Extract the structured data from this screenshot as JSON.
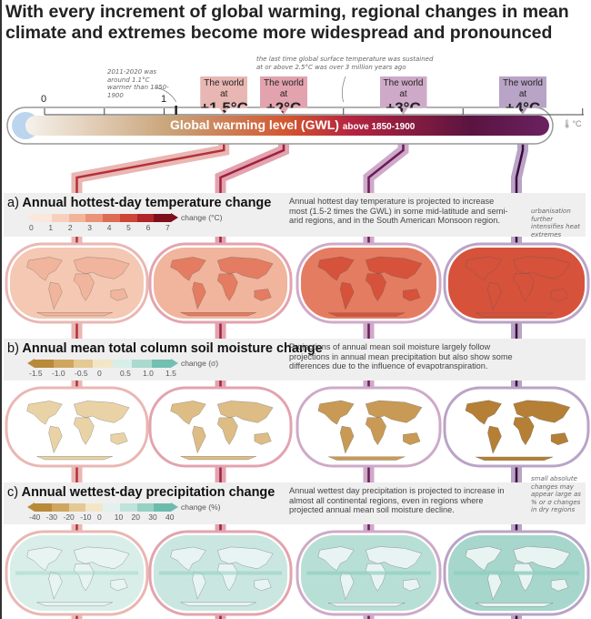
{
  "title": "With every increment of global warming, regional changes in mean climate and extremes become more widespread and pronounced",
  "gwl_bar": {
    "label": "Global warming level (GWL)",
    "label_suffix": "above 1850-1900",
    "unit_icon": "thermometer-icon",
    "unit": "°C",
    "tick_0": "0",
    "tick_1": "1",
    "note_current": "2011-2020 was around 1.1°C warmer than 1850-1900",
    "note_current_value": 1.1,
    "note_past": "the last time global surface temperature was sustained at or above 2.5°C was over 3 million years ago",
    "note_past_value": 2.5
  },
  "levels": [
    {
      "prefix": "The world at",
      "value": "+1.5°C",
      "gwl": 1.5,
      "color": "#e9b7b3",
      "line": "#b5303a"
    },
    {
      "prefix": "The world at",
      "value": "+2°C",
      "gwl": 2,
      "color": "#e3a3ae",
      "line": "#a02040"
    },
    {
      "prefix": "The world at",
      "value": "+3°C",
      "gwl": 3,
      "color": "#ceaac8",
      "line": "#6a1a5a"
    },
    {
      "prefix": "The world at",
      "value": "+4°C",
      "gwl": 4,
      "color": "#b9a3c6",
      "line": "#3a0a3a"
    }
  ],
  "sections": [
    {
      "letter": "a)",
      "title": "Annual hottest-day temperature change",
      "description": "Annual hottest day temperature is projected to increase most (1.5-2 times the GWL) in some mid-latitude and semi-arid regions, and in the South American Monsoon region.",
      "colorbar_label": "change (°C)",
      "colorbar_ticks": [
        "0",
        "1",
        "2",
        "3",
        "4",
        "5",
        "6",
        "7"
      ],
      "colorbar_colors": [
        "#fbe7dc",
        "#f7d0bd",
        "#f2b59b",
        "#ea9378",
        "#de6c55",
        "#cc4536",
        "#b0242a",
        "#7e0f1c"
      ],
      "side_note": "urbanisation further intensifies heat extremes",
      "map_colors": [
        "#f4c8b2",
        "#f0b59c",
        "#e47c62",
        "#d6523b"
      ]
    },
    {
      "letter": "b)",
      "title": "Annual mean total column soil moisture change",
      "description": "Projections of annual mean soil moisture largely follow projections in annual mean precipitation but also show some differences due to the influence of evapotranspiration.",
      "colorbar_label": "change (σ)",
      "colorbar_ticks": [
        "-1.5",
        "-1.0",
        "-0.5",
        "0",
        "0.5",
        "1.0",
        "1.5"
      ],
      "colorbar_colors": [
        "#b98a3a",
        "#cfa660",
        "#e4c993",
        "#f3e6c8",
        "#d8eee9",
        "#a9dad0",
        "#72c0b2"
      ],
      "map_colors": [
        "#e9d3a6",
        "#ddbd85",
        "#c99a55",
        "#b57f35"
      ]
    },
    {
      "letter": "c)",
      "title": "Annual wettest-day precipitation change",
      "description": "Annual wettest day precipitation is projected to increase in almost all continental regions, even in regions where projected annual mean soil moisture decline.",
      "colorbar_label": "change (%)",
      "colorbar_ticks": [
        "-40",
        "-30",
        "-20",
        "-10",
        "0",
        "10",
        "20",
        "30",
        "40"
      ],
      "colorbar_colors": [
        "#b98a3a",
        "#cfa660",
        "#e4c993",
        "#f3e6c8",
        "#e3f1ee",
        "#c0e3dc",
        "#96d1c5",
        "#6bbcad"
      ],
      "side_note": "small absolute changes may appear large as % or σ changes in dry regions",
      "map_colors": [
        "#d9eee9",
        "#c9e7e0",
        "#b8dfd6",
        "#a6d6cc"
      ]
    }
  ]
}
